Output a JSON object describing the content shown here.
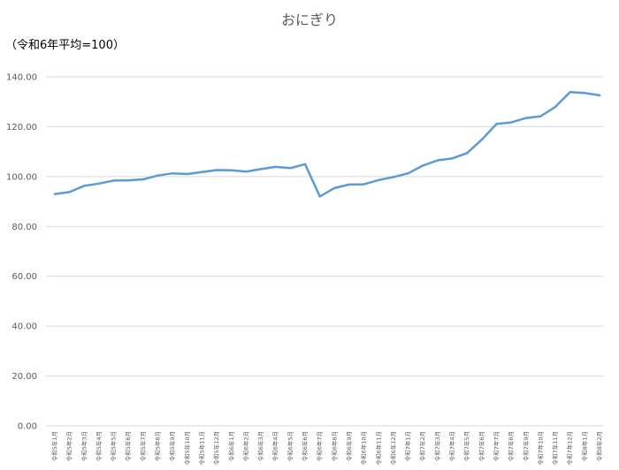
{
  "chart_data": {
    "type": "line",
    "title": "おにぎり",
    "unit_label": "（令和6年平均=100）",
    "xlabel": "",
    "ylabel": "",
    "ylim": [
      0,
      140
    ],
    "ytick_values": [
      0,
      20,
      40,
      60,
      80,
      100,
      120,
      140
    ],
    "ytick_labels": [
      "0.00",
      "20.00",
      "40.00",
      "60.00",
      "80.00",
      "100.00",
      "120.00",
      "140.00"
    ],
    "grid": true,
    "legend": "none",
    "series_color": "#5b9bd5",
    "categories": [
      "令和5年1月",
      "令和5年2月",
      "令和5年3月",
      "令和5年4月",
      "令和5年5月",
      "令和5年6月",
      "令和5年7月",
      "令和5年8月",
      "令和5年9月",
      "令和5年10月",
      "令和5年11月",
      "令和5年12月",
      "令和6年1月",
      "令和6年2月",
      "令和6年3月",
      "令和6年4月",
      "令和6年5月",
      "令和6年6月",
      "令和6年7月",
      "令和6年8月",
      "令和6年9月",
      "令和6年10月",
      "令和6年11月",
      "令和6年12月",
      "令和7年1月",
      "令和7年2月",
      "令和7年3月",
      "令和7年4月",
      "令和7年5月",
      "令和7年6月",
      "令和7年7月",
      "令和7年8月",
      "令和7年9月",
      "令和7年10月",
      "令和7年11月",
      "令和7年12月",
      "令和8年1月",
      "令和8年2月"
    ],
    "series": [
      {
        "values": [
          93.0,
          93.8,
          96.3,
          97.2,
          98.4,
          98.5,
          98.9,
          100.4,
          101.3,
          101.0,
          101.8,
          102.6,
          102.5,
          102.0,
          103.0,
          103.9,
          103.4,
          105.0,
          92.0,
          95.4,
          96.8,
          96.9,
          98.6,
          99.8,
          101.3,
          104.4,
          106.5,
          107.3,
          109.4,
          114.8,
          121.1,
          121.7,
          123.5,
          124.2,
          128.0,
          133.9,
          133.5,
          132.6
        ]
      }
    ]
  }
}
